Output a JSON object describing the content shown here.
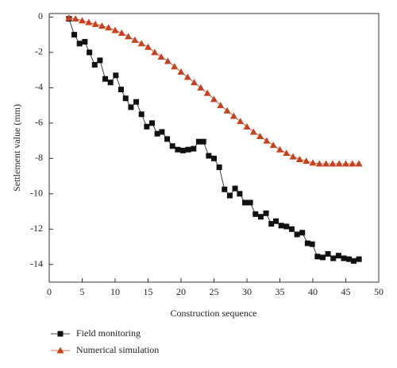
{
  "chart_data": {
    "type": "line",
    "x_label": "Construction sequence",
    "y_label": "Settlement value (mm)",
    "xlim": [
      0,
      50
    ],
    "xticks": [
      0,
      5,
      10,
      15,
      20,
      25,
      30,
      35,
      40,
      45,
      50
    ],
    "ylim": [
      -15,
      0.2
    ],
    "yticks": [
      0,
      -2,
      -4,
      -6,
      -8,
      -10,
      -12,
      -14
    ],
    "series": [
      {
        "name": "Field monitoring",
        "color": "#111111",
        "marker": "square",
        "x": [
          3.0,
          3.8,
          4.6,
          5.4,
          6.1,
          6.9,
          7.7,
          8.5,
          9.3,
          10.1,
          10.9,
          11.6,
          12.4,
          13.2,
          14.0,
          14.8,
          15.6,
          16.4,
          17.1,
          17.9,
          18.7,
          19.5,
          20.3,
          21.1,
          21.9,
          22.7,
          23.4,
          24.2,
          25.0,
          25.8,
          26.6,
          27.4,
          28.2,
          28.9,
          29.7,
          30.5,
          31.3,
          32.1,
          32.9,
          33.7,
          34.4,
          35.2,
          36.0,
          36.8,
          37.6,
          38.4,
          39.2,
          39.9,
          40.7,
          41.5,
          42.3,
          43.1,
          43.9,
          44.7,
          45.5,
          46.2,
          47.0
        ],
        "values": [
          -0.1,
          -1.0,
          -1.5,
          -1.4,
          -2.0,
          -2.7,
          -2.45,
          -3.5,
          -3.7,
          -3.3,
          -4.1,
          -4.6,
          -5.1,
          -4.8,
          -5.5,
          -6.2,
          -6.0,
          -6.6,
          -6.5,
          -6.9,
          -7.3,
          -7.5,
          -7.55,
          -7.5,
          -7.45,
          -7.05,
          -7.05,
          -7.85,
          -8.0,
          -8.5,
          -9.75,
          -10.1,
          -9.7,
          -10.0,
          -10.5,
          -10.5,
          -11.15,
          -11.3,
          -11.1,
          -11.7,
          -11.55,
          -11.8,
          -11.85,
          -12.0,
          -12.3,
          -12.2,
          -12.8,
          -12.85,
          -13.55,
          -13.6,
          -13.4,
          -13.65,
          -13.5,
          -13.65,
          -13.7,
          -13.8,
          -13.7
        ]
      },
      {
        "name": "Numerical simulation",
        "color": "#c8401c",
        "marker": "triangle",
        "x": [
          3,
          4,
          5,
          6,
          7,
          8,
          9,
          10,
          11,
          12,
          13,
          14,
          15,
          16,
          17,
          18,
          19,
          20,
          21,
          22,
          23,
          24,
          25,
          26,
          27,
          28,
          29,
          30,
          31,
          32,
          33,
          34,
          35,
          36,
          37,
          38,
          39,
          40,
          41,
          42,
          43,
          44,
          45,
          46,
          47
        ],
        "values": [
          -0.05,
          -0.1,
          -0.2,
          -0.3,
          -0.4,
          -0.5,
          -0.6,
          -0.75,
          -0.9,
          -1.1,
          -1.3,
          -1.5,
          -1.7,
          -2.0,
          -2.25,
          -2.5,
          -2.8,
          -3.1,
          -3.4,
          -3.7,
          -4.0,
          -4.3,
          -4.65,
          -5.0,
          -5.3,
          -5.6,
          -5.9,
          -6.2,
          -6.5,
          -6.75,
          -7.0,
          -7.25,
          -7.5,
          -7.7,
          -7.9,
          -8.05,
          -8.15,
          -8.25,
          -8.3,
          -8.3,
          -8.3,
          -8.3,
          -8.3,
          -8.3,
          -8.3
        ]
      }
    ]
  }
}
